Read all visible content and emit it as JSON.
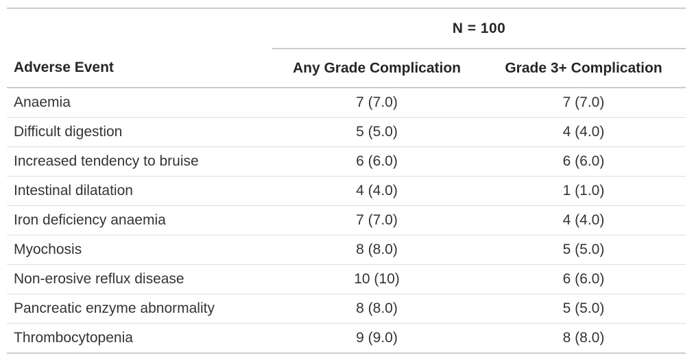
{
  "chart_data": {
    "type": "table",
    "spanner": "N = 100",
    "columns": [
      "Adverse Event",
      "Any Grade Complication",
      "Grade 3+ Complication"
    ],
    "rows": [
      [
        "Anaemia",
        "7 (7.0)",
        "7 (7.0)"
      ],
      [
        "Difficult digestion",
        "5 (5.0)",
        "4 (4.0)"
      ],
      [
        "Increased tendency to bruise",
        "6 (6.0)",
        "6 (6.0)"
      ],
      [
        "Intestinal dilatation",
        "4 (4.0)",
        "1 (1.0)"
      ],
      [
        "Iron deficiency anaemia",
        "7 (7.0)",
        "4 (4.0)"
      ],
      [
        "Myochosis",
        "8 (8.0)",
        "5 (5.0)"
      ],
      [
        "Non-erosive reflux disease",
        "10 (10)",
        "6 (6.0)"
      ],
      [
        "Pancreatic enzyme abnormality",
        "8 (8.0)",
        "5 (5.0)"
      ],
      [
        "Thrombocytopenia",
        "9 (9.0)",
        "8 (8.0)"
      ]
    ],
    "layout": {
      "grid": "horizontal-rules-only",
      "value_columns_aligned": "center",
      "stub_column_aligned": "left"
    }
  },
  "colors": {
    "background": "#ffffff",
    "body_text": "#333333",
    "header_text": "#262626",
    "rule_strong": "#cccccc",
    "rule_light": "#dedede"
  }
}
